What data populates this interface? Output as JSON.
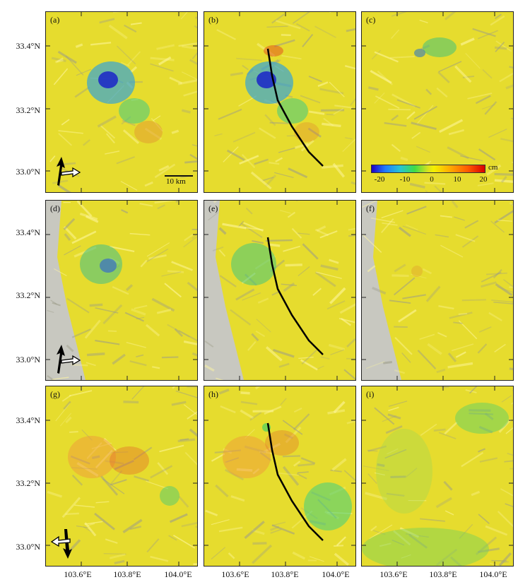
{
  "figure": {
    "panels": [
      {
        "label": "(a)",
        "fault": false,
        "arrows": "a"
      },
      {
        "label": "(b)",
        "fault": true
      },
      {
        "label": "(c)",
        "fault": false,
        "colorbar": true
      },
      {
        "label": "(d)",
        "fault": false,
        "arrows": "a",
        "gray_left": true
      },
      {
        "label": "(e)",
        "fault": true,
        "gray_left": true
      },
      {
        "label": "(f)",
        "fault": false,
        "gray_left": true
      },
      {
        "label": "(g)",
        "fault": false,
        "arrows": "d"
      },
      {
        "label": "(h)",
        "fault": true
      },
      {
        "label": "(i)",
        "fault": false
      }
    ],
    "y_ticks": [
      "33.4°N",
      "33.2°N",
      "33.0°N"
    ],
    "x_ticks": [
      "103.6°E",
      "103.8°E",
      "104.0°E"
    ],
    "scale_bar": {
      "label": "10 km"
    },
    "colorbar": {
      "unit": "cm",
      "ticks": [
        "-20",
        "-10",
        "0",
        "10",
        "20"
      ],
      "range": [
        -20,
        20
      ],
      "colors": [
        "#1e00c8",
        "#27c4d3",
        "#f3f000",
        "#ff5a00",
        "#d80000"
      ]
    },
    "colors": {
      "terrain_base": "#e6dc2e",
      "shade": "#9c9c88",
      "fault_line": "#000000"
    }
  }
}
